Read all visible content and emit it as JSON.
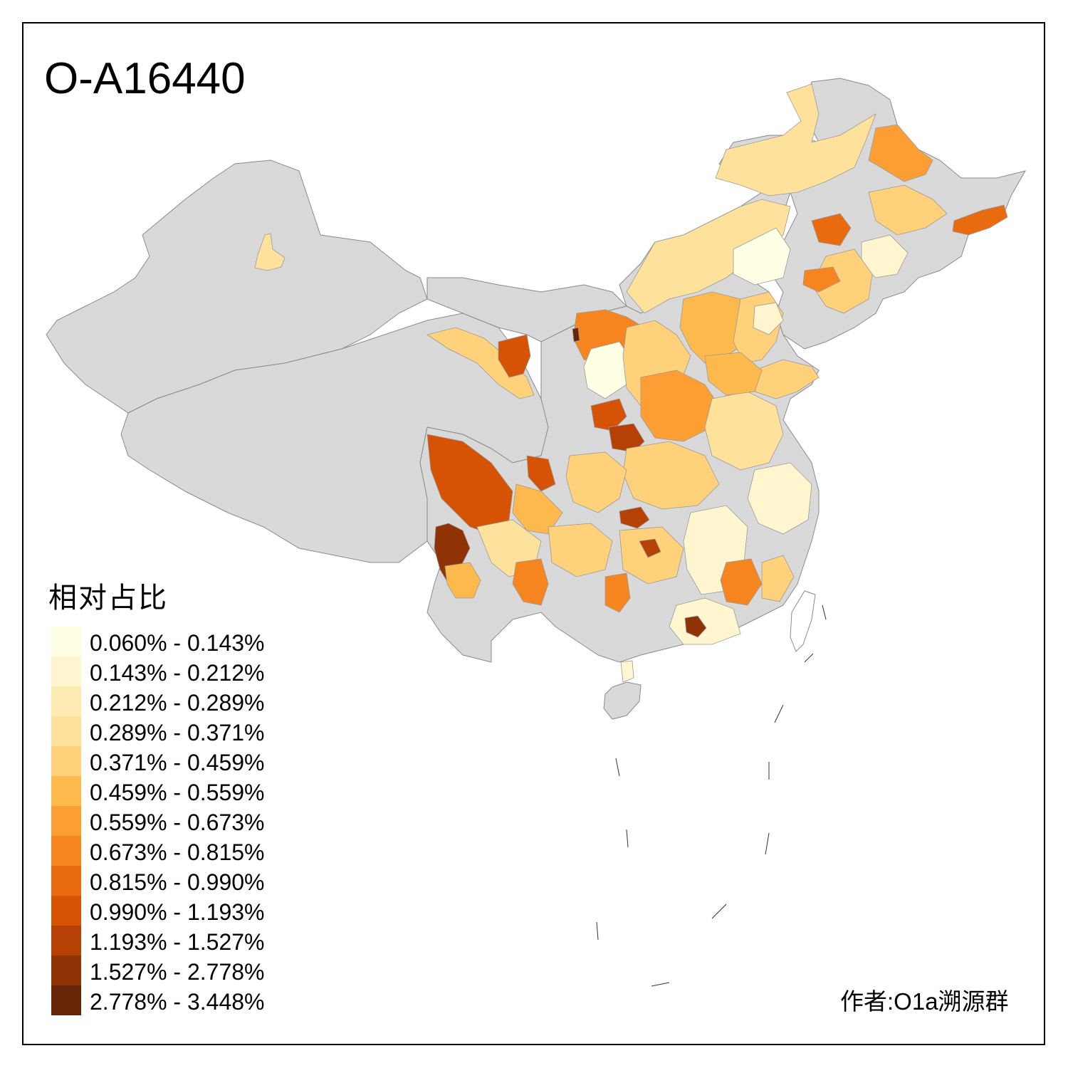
{
  "map": {
    "title": "O-A16440",
    "legend_title": "相对占比",
    "author": "作者:O1a溯源群",
    "no_data_color": "#d9d9d9",
    "legend": [
      {
        "label": "0.060% - 0.143%",
        "color": "#ffffe5"
      },
      {
        "label": "0.143% - 0.212%",
        "color": "#fff6d0"
      },
      {
        "label": "0.212% - 0.289%",
        "color": "#feebb3"
      },
      {
        "label": "0.289% - 0.371%",
        "color": "#fee29c"
      },
      {
        "label": "0.371% - 0.459%",
        "color": "#fed17a"
      },
      {
        "label": "0.459% - 0.559%",
        "color": "#feb94d"
      },
      {
        "label": "0.559% - 0.673%",
        "color": "#fd9e34"
      },
      {
        "label": "0.673% - 0.815%",
        "color": "#f6841f"
      },
      {
        "label": "0.815% - 0.990%",
        "color": "#e96b10"
      },
      {
        "label": "0.990% - 1.193%",
        "color": "#d65305"
      },
      {
        "label": "1.193% - 1.527%",
        "color": "#b54204"
      },
      {
        "label": "1.527% - 2.778%",
        "color": "#8f3304"
      },
      {
        "label": "2.778% - 3.448%",
        "color": "#662506"
      }
    ]
  }
}
